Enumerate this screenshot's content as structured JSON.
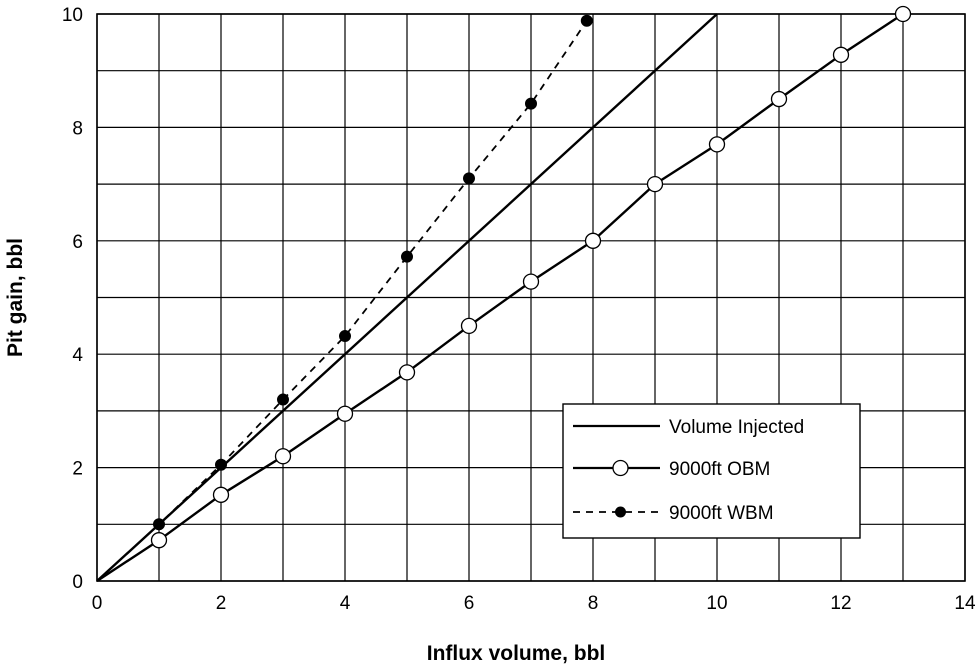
{
  "chart_data": {
    "type": "line",
    "title": "",
    "xlabel": "Influx volume, bbl",
    "ylabel": "Pit gain, bbl",
    "xlim": [
      0,
      14
    ],
    "ylim": [
      0,
      10
    ],
    "x_ticks": [
      0,
      2,
      4,
      6,
      8,
      10,
      12,
      14
    ],
    "y_ticks": [
      0,
      2,
      4,
      6,
      8,
      10
    ],
    "x_gridlines": [
      0,
      1,
      2,
      3,
      4,
      5,
      6,
      7,
      8,
      9,
      10,
      11,
      12,
      13,
      14
    ],
    "y_gridlines": [
      0,
      1,
      2,
      3,
      4,
      5,
      6,
      7,
      8,
      9,
      10
    ],
    "grid": true,
    "legend_position": "bottom-right",
    "series": [
      {
        "name": "Volume Injected",
        "style": "solid",
        "marker": "none",
        "color": "#000000",
        "x": [
          0,
          10
        ],
        "y": [
          0,
          10
        ]
      },
      {
        "name": "9000ft OBM",
        "style": "solid",
        "marker": "open-circle",
        "color": "#000000",
        "x": [
          0,
          1,
          2,
          3,
          4,
          5,
          6,
          7,
          8,
          9,
          10,
          11,
          12,
          13
        ],
        "y": [
          0,
          0.72,
          1.52,
          2.2,
          2.95,
          3.68,
          4.5,
          5.28,
          6.0,
          7.0,
          7.7,
          8.5,
          9.28,
          10.0
        ]
      },
      {
        "name": "9000ft WBM",
        "style": "dashed",
        "marker": "filled-circle",
        "color": "#000000",
        "x": [
          0,
          1,
          2,
          3,
          4,
          5,
          6,
          7,
          7.9
        ],
        "y": [
          0,
          1.0,
          2.05,
          3.2,
          4.32,
          5.72,
          7.1,
          8.42,
          9.88
        ]
      }
    ]
  }
}
